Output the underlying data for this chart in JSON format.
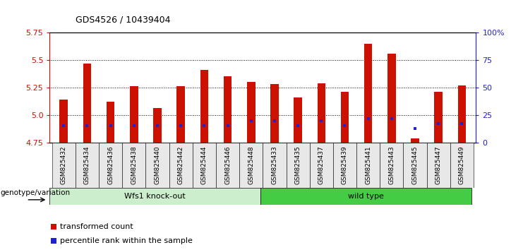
{
  "title": "GDS4526 / 10439404",
  "samples": [
    "GSM825432",
    "GSM825434",
    "GSM825436",
    "GSM825438",
    "GSM825440",
    "GSM825442",
    "GSM825444",
    "GSM825446",
    "GSM825448",
    "GSM825433",
    "GSM825435",
    "GSM825437",
    "GSM825439",
    "GSM825441",
    "GSM825443",
    "GSM825445",
    "GSM825447",
    "GSM825449"
  ],
  "transformed_count": [
    5.14,
    5.47,
    5.12,
    5.26,
    5.06,
    5.26,
    5.41,
    5.35,
    5.3,
    5.28,
    5.16,
    5.29,
    5.21,
    5.65,
    5.56,
    4.79,
    5.21,
    5.27
  ],
  "percentile_rank": [
    15,
    15,
    15,
    15,
    15,
    15,
    15,
    15,
    20,
    20,
    15,
    20,
    15,
    22,
    22,
    13,
    17,
    17
  ],
  "ymin": 4.75,
  "ymax": 5.75,
  "yticks": [
    4.75,
    5.0,
    5.25,
    5.5,
    5.75
  ],
  "right_yticks": [
    0,
    25,
    50,
    75,
    100
  ],
  "right_yticklabels": [
    "0",
    "25",
    "50",
    "75",
    "100%"
  ],
  "bar_color": "#cc1100",
  "percentile_color": "#2222cc",
  "group1_bg": "#cceecc",
  "group2_bg": "#44cc44",
  "group_label": "genotype/variation",
  "legend_transformed": "transformed count",
  "legend_percentile": "percentile rank within the sample",
  "n_group1": 9,
  "n_group2": 9
}
